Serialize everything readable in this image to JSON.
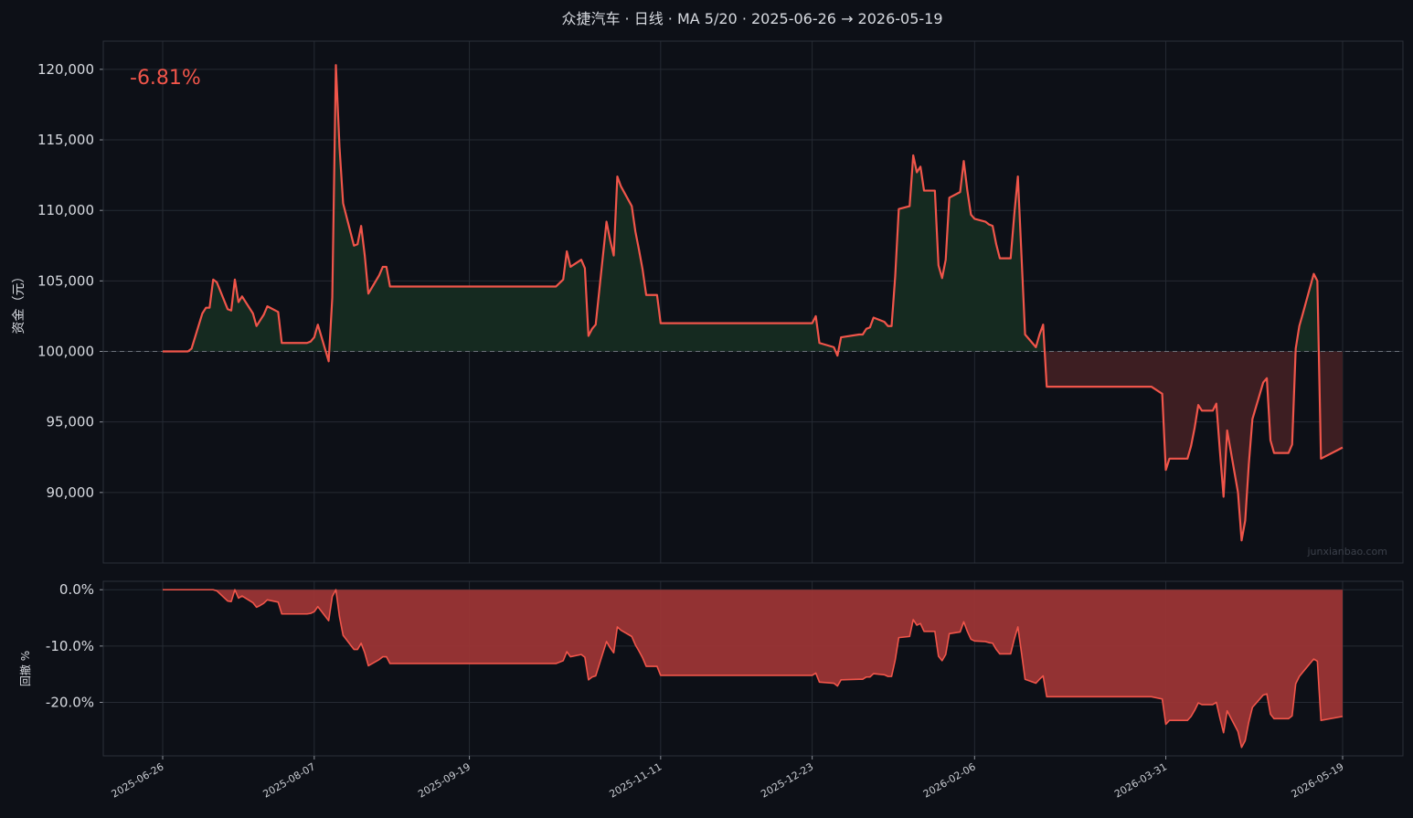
{
  "title": "众捷汽车 · 日线 · MA 5/20 · 2025-06-26 → 2026-05-19",
  "return_label": "-6.81%",
  "watermark": "junxianbao.com",
  "colors": {
    "background": "#0d1017",
    "line": "#f0554a",
    "profit_fill": "#152a20",
    "loss_fill": "#3d1e22",
    "drawdown_fill": "#9b3535"
  },
  "chart_data": [
    {
      "type": "area",
      "name": "equity",
      "ylabel": "资金（元）",
      "ylim": [
        85000,
        122000
      ],
      "yticks": [
        90000,
        95000,
        100000,
        105000,
        110000,
        115000,
        120000
      ],
      "ytick_labels": [
        "90,000",
        "95,000",
        "100,000",
        "105,000",
        "110,000",
        "115,000",
        "120,000"
      ],
      "baseline": 100000,
      "grid": true,
      "xticks": [
        "2025-06-26",
        "2025-08-07",
        "2025-09-19",
        "2025-11-11",
        "2025-12-23",
        "2026-02-06",
        "2026-03-31",
        "2026-05-19"
      ],
      "x_start": "2025-06-26",
      "x_end": "2026-05-19",
      "points": [
        [
          "2025-06-26",
          100000
        ],
        [
          "2025-07-03",
          100000
        ],
        [
          "2025-07-04",
          100200
        ],
        [
          "2025-07-07",
          102700
        ],
        [
          "2025-07-08",
          103100
        ],
        [
          "2025-07-09",
          103100
        ],
        [
          "2025-07-10",
          105100
        ],
        [
          "2025-07-11",
          104900
        ],
        [
          "2025-07-14",
          103000
        ],
        [
          "2025-07-15",
          102900
        ],
        [
          "2025-07-16",
          105100
        ],
        [
          "2025-07-17",
          103500
        ],
        [
          "2025-07-18",
          103900
        ],
        [
          "2025-07-21",
          102700
        ],
        [
          "2025-07-22",
          101800
        ],
        [
          "2025-07-23",
          102200
        ],
        [
          "2025-07-24",
          102600
        ],
        [
          "2025-07-25",
          103200
        ],
        [
          "2025-07-28",
          102800
        ],
        [
          "2025-07-29",
          100600
        ],
        [
          "2025-08-05",
          100600
        ],
        [
          "2025-08-06",
          100700
        ],
        [
          "2025-08-07",
          101000
        ],
        [
          "2025-08-08",
          101900
        ],
        [
          "2025-08-11",
          99300
        ],
        [
          "2025-08-12",
          103800
        ],
        [
          "2025-08-13",
          120300
        ],
        [
          "2025-08-14",
          114500
        ],
        [
          "2025-08-15",
          110500
        ],
        [
          "2025-08-18",
          107500
        ],
        [
          "2025-08-19",
          107600
        ],
        [
          "2025-08-20",
          108900
        ],
        [
          "2025-08-21",
          106800
        ],
        [
          "2025-08-22",
          104100
        ],
        [
          "2025-08-25",
          105400
        ],
        [
          "2025-08-26",
          106000
        ],
        [
          "2025-08-27",
          106000
        ],
        [
          "2025-08-28",
          104600
        ],
        [
          "2025-10-13",
          104600
        ],
        [
          "2025-10-15",
          105100
        ],
        [
          "2025-10-16",
          107100
        ],
        [
          "2025-10-17",
          106000
        ],
        [
          "2025-10-20",
          106500
        ],
        [
          "2025-10-21",
          105900
        ],
        [
          "2025-10-22",
          101100
        ],
        [
          "2025-10-23",
          101600
        ],
        [
          "2025-10-24",
          101900
        ],
        [
          "2025-10-27",
          109200
        ],
        [
          "2025-10-28",
          107900
        ],
        [
          "2025-10-29",
          106800
        ],
        [
          "2025-10-30",
          112400
        ],
        [
          "2025-10-31",
          111700
        ],
        [
          "2025-11-03",
          110300
        ],
        [
          "2025-11-04",
          108500
        ],
        [
          "2025-11-05",
          107200
        ],
        [
          "2025-11-06",
          105800
        ],
        [
          "2025-11-07",
          104000
        ],
        [
          "2025-11-10",
          104000
        ],
        [
          "2025-11-11",
          102000
        ],
        [
          "2025-12-23",
          102000
        ],
        [
          "2025-12-24",
          102500
        ],
        [
          "2025-12-25",
          100600
        ],
        [
          "2025-12-29",
          100300
        ],
        [
          "2025-12-30",
          99700
        ],
        [
          "2025-12-31",
          101000
        ],
        [
          "2026-01-05",
          101200
        ],
        [
          "2026-01-06",
          101200
        ],
        [
          "2026-01-07",
          101600
        ],
        [
          "2026-01-08",
          101700
        ],
        [
          "2026-01-09",
          102400
        ],
        [
          "2026-01-12",
          102100
        ],
        [
          "2026-01-13",
          101800
        ],
        [
          "2026-01-14",
          101800
        ],
        [
          "2026-01-15",
          105300
        ],
        [
          "2026-01-16",
          110100
        ],
        [
          "2026-01-19",
          110300
        ],
        [
          "2026-01-20",
          113900
        ],
        [
          "2026-01-21",
          112700
        ],
        [
          "2026-01-22",
          113100
        ],
        [
          "2026-01-23",
          111400
        ],
        [
          "2026-01-26",
          111400
        ],
        [
          "2026-01-27",
          106100
        ],
        [
          "2026-01-28",
          105200
        ],
        [
          "2026-01-29",
          106500
        ],
        [
          "2026-01-30",
          110900
        ],
        [
          "2026-02-02",
          111300
        ],
        [
          "2026-02-03",
          113500
        ],
        [
          "2026-02-04",
          111400
        ],
        [
          "2026-02-05",
          109700
        ],
        [
          "2026-02-06",
          109400
        ],
        [
          "2026-02-09",
          109200
        ],
        [
          "2026-02-10",
          109000
        ],
        [
          "2026-02-11",
          108900
        ],
        [
          "2026-02-12",
          107600
        ],
        [
          "2026-02-13",
          106600
        ],
        [
          "2026-02-16",
          106600
        ],
        [
          "2026-02-17",
          109700
        ],
        [
          "2026-02-18",
          112400
        ],
        [
          "2026-02-19",
          106800
        ],
        [
          "2026-02-20",
          101200
        ],
        [
          "2026-02-23",
          100300
        ],
        [
          "2026-02-24",
          101200
        ],
        [
          "2026-02-25",
          101900
        ],
        [
          "2026-02-26",
          97500
        ],
        [
          "2026-03-27",
          97500
        ],
        [
          "2026-03-30",
          97000
        ],
        [
          "2026-03-31",
          91600
        ],
        [
          "2026-04-01",
          92400
        ],
        [
          "2026-04-06",
          92400
        ],
        [
          "2026-04-07",
          93300
        ],
        [
          "2026-04-08",
          94600
        ],
        [
          "2026-04-09",
          96200
        ],
        [
          "2026-04-10",
          95800
        ],
        [
          "2026-04-13",
          95800
        ],
        [
          "2026-04-14",
          96300
        ],
        [
          "2026-04-15",
          92900
        ],
        [
          "2026-04-16",
          89700
        ],
        [
          "2026-04-17",
          94400
        ],
        [
          "2026-04-20",
          90000
        ],
        [
          "2026-04-21",
          86600
        ],
        [
          "2026-04-22",
          88000
        ],
        [
          "2026-04-23",
          92000
        ],
        [
          "2026-04-24",
          95200
        ],
        [
          "2026-04-27",
          97800
        ],
        [
          "2026-04-28",
          98100
        ],
        [
          "2026-04-29",
          93700
        ],
        [
          "2026-04-30",
          92800
        ],
        [
          "2026-05-04",
          92800
        ],
        [
          "2026-05-05",
          93400
        ],
        [
          "2026-05-06",
          100200
        ],
        [
          "2026-05-07",
          101800
        ],
        [
          "2026-05-08",
          102700
        ],
        [
          "2026-05-11",
          105500
        ],
        [
          "2026-05-12",
          105000
        ],
        [
          "2026-05-13",
          92400
        ],
        [
          "2026-05-19",
          93190
        ]
      ]
    },
    {
      "type": "area",
      "name": "drawdown",
      "ylabel": "回撤 %",
      "ylim": [
        -29.5,
        1.5
      ],
      "yticks": [
        -20,
        -10,
        0
      ],
      "ytick_labels": [
        "-20.0%",
        "-10.0%",
        "0.0%"
      ],
      "grid": true,
      "points": [
        [
          "2025-06-26",
          0
        ],
        [
          "2025-07-08",
          0
        ],
        [
          "2025-07-10",
          0
        ],
        [
          "2025-07-11",
          -0.2
        ],
        [
          "2025-07-14",
          -2.0
        ],
        [
          "2025-07-15",
          -2.1
        ],
        [
          "2025-07-16",
          0
        ],
        [
          "2025-07-17",
          -1.5
        ],
        [
          "2025-07-18",
          -1.1
        ],
        [
          "2025-07-21",
          -2.3
        ],
        [
          "2025-07-22",
          -3.1
        ],
        [
          "2025-07-23",
          -2.8
        ],
        [
          "2025-07-24",
          -2.4
        ],
        [
          "2025-07-25",
          -1.8
        ],
        [
          "2025-07-28",
          -2.2
        ],
        [
          "2025-07-29",
          -4.3
        ],
        [
          "2025-08-05",
          -4.3
        ],
        [
          "2025-08-06",
          -4.2
        ],
        [
          "2025-08-07",
          -3.9
        ],
        [
          "2025-08-08",
          -3.0
        ],
        [
          "2025-08-11",
          -5.5
        ],
        [
          "2025-08-12",
          -1.2
        ],
        [
          "2025-08-13",
          0
        ],
        [
          "2025-08-14",
          -4.8
        ],
        [
          "2025-08-15",
          -8.1
        ],
        [
          "2025-08-18",
          -10.6
        ],
        [
          "2025-08-19",
          -10.6
        ],
        [
          "2025-08-20",
          -9.5
        ],
        [
          "2025-08-21",
          -11.2
        ],
        [
          "2025-08-22",
          -13.5
        ],
        [
          "2025-08-25",
          -12.4
        ],
        [
          "2025-08-26",
          -11.9
        ],
        [
          "2025-08-27",
          -11.9
        ],
        [
          "2025-08-28",
          -13.1
        ],
        [
          "2025-10-13",
          -13.1
        ],
        [
          "2025-10-15",
          -12.6
        ],
        [
          "2025-10-16",
          -11.0
        ],
        [
          "2025-10-17",
          -11.9
        ],
        [
          "2025-10-20",
          -11.5
        ],
        [
          "2025-10-21",
          -12.0
        ],
        [
          "2025-10-22",
          -16.0
        ],
        [
          "2025-10-23",
          -15.5
        ],
        [
          "2025-10-24",
          -15.3
        ],
        [
          "2025-10-27",
          -9.2
        ],
        [
          "2025-10-28",
          -10.3
        ],
        [
          "2025-10-29",
          -11.2
        ],
        [
          "2025-10-30",
          -6.6
        ],
        [
          "2025-10-31",
          -7.2
        ],
        [
          "2025-11-03",
          -8.3
        ],
        [
          "2025-11-04",
          -9.8
        ],
        [
          "2025-11-05",
          -10.9
        ],
        [
          "2025-11-06",
          -12.1
        ],
        [
          "2025-11-07",
          -13.6
        ],
        [
          "2025-11-10",
          -13.6
        ],
        [
          "2025-11-11",
          -15.2
        ],
        [
          "2025-12-23",
          -15.2
        ],
        [
          "2025-12-24",
          -14.8
        ],
        [
          "2025-12-25",
          -16.4
        ],
        [
          "2025-12-29",
          -16.6
        ],
        [
          "2025-12-30",
          -17.1
        ],
        [
          "2025-12-31",
          -16.0
        ],
        [
          "2026-01-05",
          -15.9
        ],
        [
          "2026-01-06",
          -15.9
        ],
        [
          "2026-01-07",
          -15.5
        ],
        [
          "2026-01-08",
          -15.5
        ],
        [
          "2026-01-09",
          -14.9
        ],
        [
          "2026-01-12",
          -15.1
        ],
        [
          "2026-01-13",
          -15.4
        ],
        [
          "2026-01-14",
          -15.4
        ],
        [
          "2026-01-15",
          -12.5
        ],
        [
          "2026-01-16",
          -8.5
        ],
        [
          "2026-01-19",
          -8.3
        ],
        [
          "2026-01-20",
          -5.3
        ],
        [
          "2026-01-21",
          -6.3
        ],
        [
          "2026-01-22",
          -6.0
        ],
        [
          "2026-01-23",
          -7.4
        ],
        [
          "2026-01-26",
          -7.4
        ],
        [
          "2026-01-27",
          -11.8
        ],
        [
          "2026-01-28",
          -12.6
        ],
        [
          "2026-01-29",
          -11.5
        ],
        [
          "2026-01-30",
          -7.8
        ],
        [
          "2026-02-02",
          -7.5
        ],
        [
          "2026-02-03",
          -5.7
        ],
        [
          "2026-02-04",
          -7.4
        ],
        [
          "2026-02-05",
          -8.8
        ],
        [
          "2026-02-06",
          -9.1
        ],
        [
          "2026-02-09",
          -9.2
        ],
        [
          "2026-02-10",
          -9.4
        ],
        [
          "2026-02-11",
          -9.5
        ],
        [
          "2026-02-12",
          -10.6
        ],
        [
          "2026-02-13",
          -11.4
        ],
        [
          "2026-02-16",
          -11.4
        ],
        [
          "2026-02-17",
          -8.8
        ],
        [
          "2026-02-18",
          -6.6
        ],
        [
          "2026-02-19",
          -11.2
        ],
        [
          "2026-02-20",
          -15.9
        ],
        [
          "2026-02-23",
          -16.6
        ],
        [
          "2026-02-24",
          -15.9
        ],
        [
          "2026-02-25",
          -15.3
        ],
        [
          "2026-02-26",
          -19.0
        ],
        [
          "2026-03-27",
          -19.0
        ],
        [
          "2026-03-30",
          -19.4
        ],
        [
          "2026-03-31",
          -23.9
        ],
        [
          "2026-04-01",
          -23.2
        ],
        [
          "2026-04-06",
          -23.2
        ],
        [
          "2026-04-07",
          -22.5
        ],
        [
          "2026-04-08",
          -21.4
        ],
        [
          "2026-04-09",
          -20.1
        ],
        [
          "2026-04-10",
          -20.4
        ],
        [
          "2026-04-13",
          -20.4
        ],
        [
          "2026-04-14",
          -20.0
        ],
        [
          "2026-04-15",
          -22.8
        ],
        [
          "2026-04-16",
          -25.4
        ],
        [
          "2026-04-17",
          -21.5
        ],
        [
          "2026-04-20",
          -25.2
        ],
        [
          "2026-04-21",
          -28.0
        ],
        [
          "2026-04-22",
          -26.8
        ],
        [
          "2026-04-23",
          -23.5
        ],
        [
          "2026-04-24",
          -20.9
        ],
        [
          "2026-04-27",
          -18.7
        ],
        [
          "2026-04-28",
          -18.5
        ],
        [
          "2026-04-29",
          -22.1
        ],
        [
          "2026-04-30",
          -22.9
        ],
        [
          "2026-05-04",
          -22.9
        ],
        [
          "2026-05-05",
          -22.4
        ],
        [
          "2026-05-06",
          -16.7
        ],
        [
          "2026-05-07",
          -15.4
        ],
        [
          "2026-05-08",
          -14.6
        ],
        [
          "2026-05-11",
          -12.3
        ],
        [
          "2026-05-12",
          -12.7
        ],
        [
          "2026-05-13",
          -23.2
        ],
        [
          "2026-05-19",
          -22.5
        ]
      ]
    }
  ]
}
